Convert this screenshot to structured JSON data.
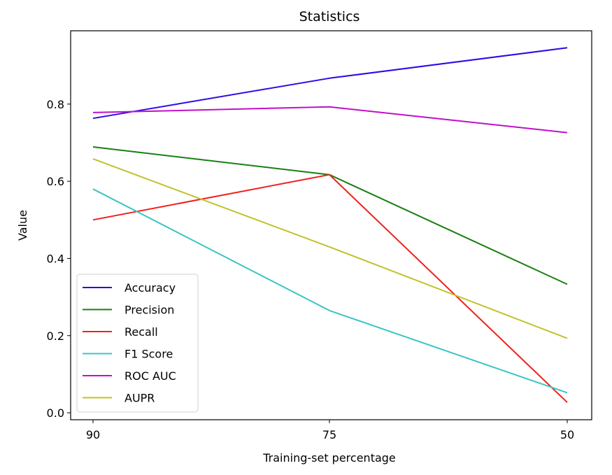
{
  "chart_data": {
    "type": "line",
    "title": "Statistics",
    "xlabel": "Training-set percentage",
    "ylabel": "Value",
    "categories": [
      "90",
      "75",
      "50"
    ],
    "ylim": [
      -0.018,
      0.99
    ],
    "yticks": [
      "0.0",
      "0.2",
      "0.4",
      "0.6",
      "0.8"
    ],
    "grid": false,
    "legend_position": "lower-left",
    "series": [
      {
        "name": "Accuracy",
        "color": "#2a0ce6",
        "values": [
          0.763,
          0.867,
          0.946
        ]
      },
      {
        "name": "Precision",
        "color": "#1a7f13",
        "values": [
          0.689,
          0.617,
          0.333
        ]
      },
      {
        "name": "Recall",
        "color": "#f0201d",
        "values": [
          0.5,
          0.617,
          0.027
        ]
      },
      {
        "name": "F1 Score",
        "color": "#3cc4c4",
        "values": [
          0.58,
          0.265,
          0.052
        ]
      },
      {
        "name": "ROC AUC",
        "color": "#c010c9",
        "values": [
          0.778,
          0.793,
          0.726
        ]
      },
      {
        "name": "AUPR",
        "color": "#c1c22a",
        "values": [
          0.658,
          0.43,
          0.193
        ]
      }
    ]
  }
}
